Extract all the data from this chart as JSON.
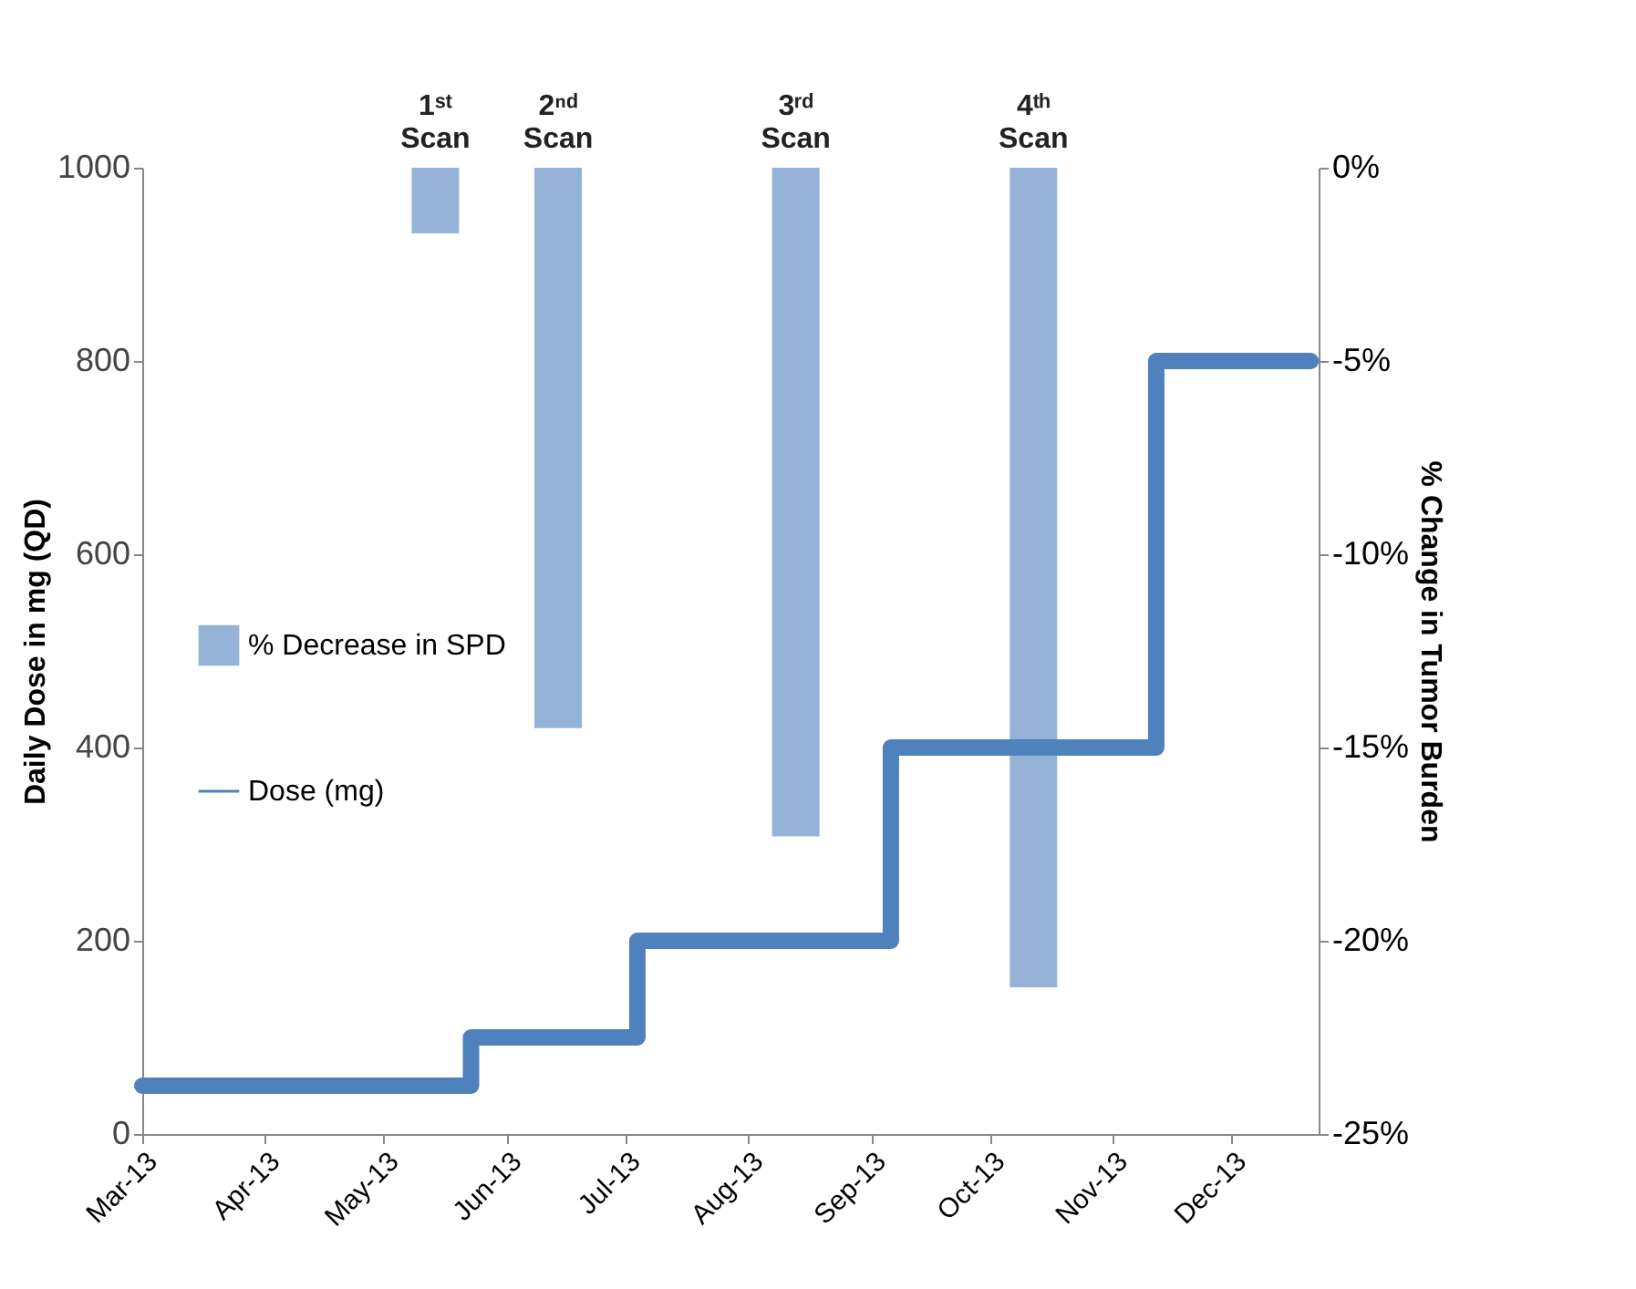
{
  "chart_data": {
    "type": "bar",
    "xlabel": null,
    "ylabel": "Daily Dose in mg (QD)",
    "y2label": "% Change in Tumor Burden",
    "series": [
      {
        "name": "% Decrease in SPD",
        "axis": "y2",
        "color": "#95b3d7",
        "x": [
          "2013-05-14",
          "2013-06-14",
          "2013-08-13",
          "2013-10-12"
        ],
        "values": [
          -1.7,
          -14.5,
          -17.3,
          -21.2
        ]
      },
      {
        "name": "Dose (mg)",
        "type": "step",
        "color": "#4f81bd",
        "x": [
          "2013-03-01",
          "2013-05-23",
          "2013-07-04",
          "2013-09-06",
          "2013-11-12",
          "2013-12-21"
        ],
        "values": [
          50,
          100,
          200,
          400,
          800,
          800
        ]
      }
    ],
    "xlim": [
      "2013-03-01",
      "2013-12-23"
    ],
    "xticks": [
      {
        "value": "2013-03-01",
        "label": "Mar-13"
      },
      {
        "value": "2013-04-01",
        "label": "Apr-13"
      },
      {
        "value": "2013-05-01",
        "label": "May-13"
      },
      {
        "value": "2013-06-01",
        "label": "Jun-13"
      },
      {
        "value": "2013-07-01",
        "label": "Jul-13"
      },
      {
        "value": "2013-08-01",
        "label": "Aug-13"
      },
      {
        "value": "2013-09-01",
        "label": "Sep-13"
      },
      {
        "value": "2013-10-01",
        "label": "Oct-13"
      },
      {
        "value": "2013-11-01",
        "label": "Nov-13"
      },
      {
        "value": "2013-12-01",
        "label": "Dec-13"
      }
    ],
    "ylim": [
      0,
      1000
    ],
    "yticks": [
      0,
      200,
      400,
      600,
      800,
      1000
    ],
    "y2lim": [
      -25,
      0
    ],
    "y2ticks": [
      {
        "value": -25,
        "label": "-25%"
      },
      {
        "value": -20,
        "label": "-20%"
      },
      {
        "value": -15,
        "label": "-15%"
      },
      {
        "value": -10,
        "label": "-10%"
      },
      {
        "value": -5,
        "label": "-5%"
      },
      {
        "value": 0,
        "label": "0%"
      }
    ],
    "annotations": [
      {
        "text": "1ˢᵗ Scan",
        "x": "2013-05-14",
        "y": 1000
      },
      {
        "text": "2ⁿᵈ Scan",
        "x": "2013-06-14",
        "y": 1000
      },
      {
        "text": "3ʳᵈ Scan",
        "x": "2013-08-13",
        "y": 1000
      },
      {
        "text": "4ᵗʰ Scan",
        "x": "2013-10-12",
        "y": 1000
      }
    ],
    "grid": false,
    "legend": "left",
    "line_style": "solid",
    "marker": "none"
  }
}
